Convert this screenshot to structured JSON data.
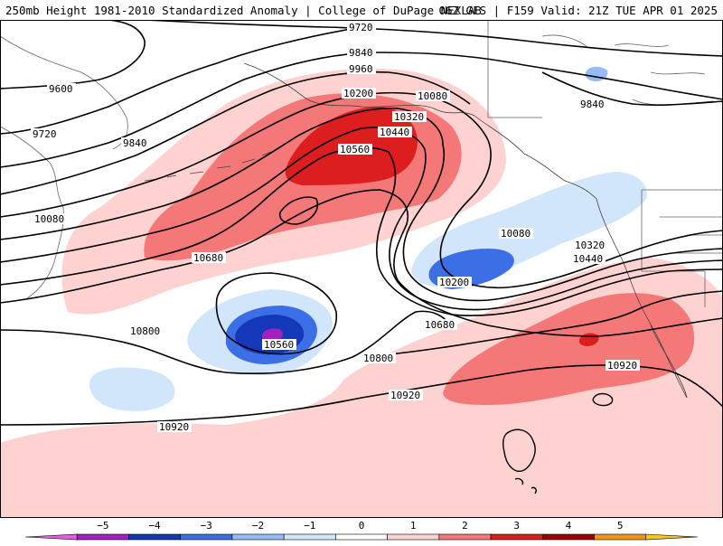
{
  "header": {
    "left_title": "250mb Height 1981-2010 Standardized Anomaly | College of DuPage NEXLAB",
    "right_title": "06Z GFS | F159 Valid: 21Z TUE APR 01 2025"
  },
  "contour_labels": {
    "c9720_top": "9720",
    "c9840_top": "9840",
    "c9960": "9960",
    "c9600": "9600",
    "c9720_left": "9720",
    "c9840_left": "9840",
    "c10200_top": "10200",
    "c10080_top": "10080",
    "c10320_top": "10320",
    "c10440_top": "10440",
    "c10560_top": "10560",
    "c9840_right": "9840",
    "c10080_left": "10080",
    "c10680_left": "10680",
    "c10080_right": "10080",
    "c10320_right": "10320",
    "c10440_right": "10440",
    "c10200_trough": "10200",
    "c10680_mid": "10680",
    "c10800_left": "10800",
    "c10560_low": "10560",
    "c10800_mid": "10800",
    "c10920_right": "10920",
    "c10920_mid": "10920",
    "c10920_left": "10920"
  },
  "colorbar": {
    "ticks": [
      "−5",
      "−4",
      "−3",
      "−2",
      "−1",
      "0",
      "1",
      "2",
      "3",
      "4",
      "5"
    ],
    "colors": [
      "#e060e0",
      "#a020c0",
      "#1438b8",
      "#3c6ee6",
      "#96bcf5",
      "#d2e6fb",
      "#ffffff",
      "#ffd2d2",
      "#f57878",
      "#dc1e1e",
      "#a00000",
      "#f09614",
      "#f5c820"
    ]
  }
}
